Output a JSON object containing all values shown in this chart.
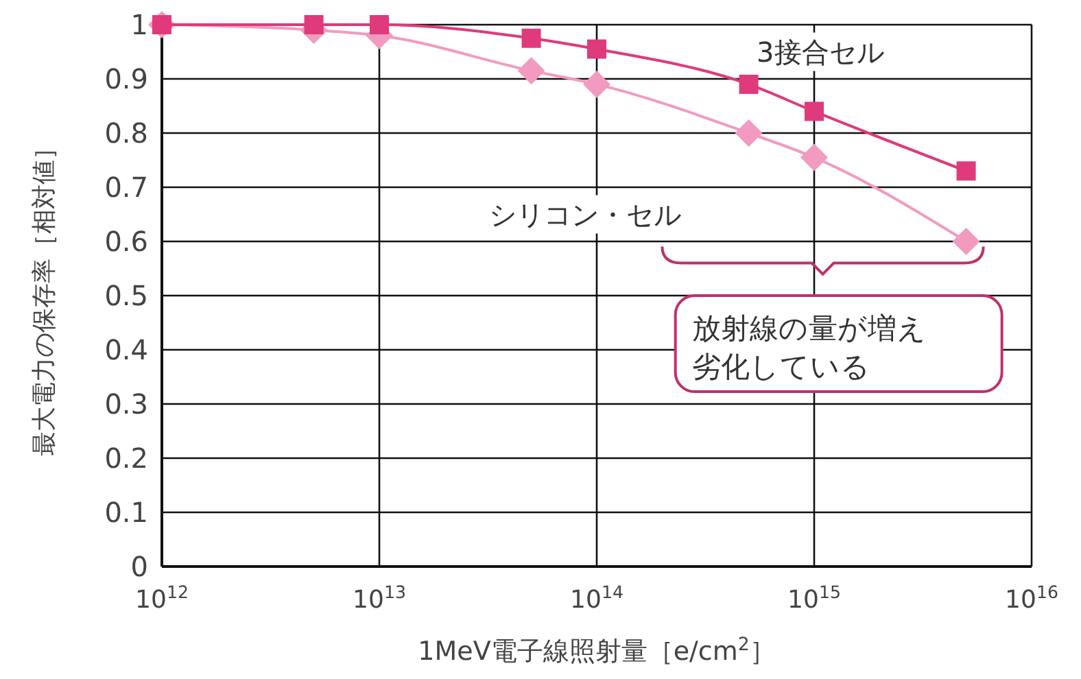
{
  "chart_data": {
    "type": "line",
    "xlabel": "1MeV電子線照射量［e/cm$^{2}$］",
    "ylabel": "最大電力の保存率［相対値］",
    "log": "x",
    "xlim": [
      1000000000000.0,
      1e+16
    ],
    "xticks": [
      {
        "value": 1000000000000.0,
        "label": "10$^{12}$"
      },
      {
        "value": 10000000000000.0,
        "label": "10$^{13}$"
      },
      {
        "value": 100000000000000.0,
        "label": "10$^{14}$"
      },
      {
        "value": 1000000000000000.0,
        "label": "10$^{15}$"
      },
      {
        "value": 1e+16,
        "label": "10$^{16}$"
      }
    ],
    "ylim": [
      0,
      1
    ],
    "yticks": [
      0,
      0.1,
      0.2,
      0.3,
      0.4,
      0.5,
      0.6,
      0.7,
      0.8,
      0.9,
      1
    ],
    "grid": true,
    "legend": false,
    "series": [
      {
        "name": "3接合セル",
        "color": "#de3a7c",
        "marker": "square",
        "x": [
          1000000000000.0,
          5000000000000.0,
          10000000000000.0,
          50000000000000.0,
          100000000000000.0,
          500000000000000.0,
          1000000000000000.0,
          5000000000000000.0
        ],
        "values": [
          1,
          1,
          1,
          0.975,
          0.955,
          0.89,
          0.84,
          0.73
        ]
      },
      {
        "name": "シリコン・セル",
        "color": "#f29ac0",
        "marker": "diamond",
        "x": [
          1000000000000.0,
          5000000000000.0,
          10000000000000.0,
          50000000000000.0,
          100000000000000.0,
          500000000000000.0,
          1000000000000000.0,
          5000000000000000.0
        ],
        "values": [
          1,
          0.99,
          0.98,
          0.915,
          0.89,
          0.8,
          0.755,
          0.6
        ]
      }
    ],
    "annotations": [
      "放射線の量が増え劣化している"
    ]
  }
}
